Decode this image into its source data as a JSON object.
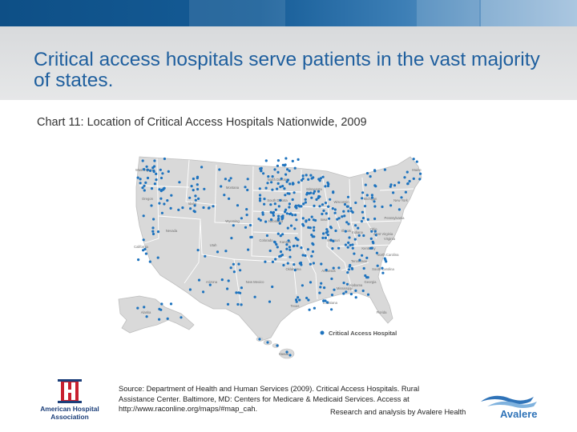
{
  "slide": {
    "title": "Critical access hospitals serve patients in the vast majority of states.",
    "chart_caption": "Chart 11: Location of Critical Access Hospitals Nationwide, 2009"
  },
  "map": {
    "legend_label": "Critical Access Hospital",
    "marker_color": "#1e73be",
    "land_color": "#d9d9d9",
    "border_color": "#ffffff",
    "state_labels": [
      "Washington",
      "Oregon",
      "California",
      "Nevada",
      "Idaho",
      "Montana",
      "Wyoming",
      "Utah",
      "Arizona",
      "Colorado",
      "New Mexico",
      "North Dakota",
      "South Dakota",
      "Nebraska",
      "Kansas",
      "Oklahoma",
      "Texas",
      "Minnesota",
      "Iowa",
      "Missouri",
      "Arkansas",
      "Louisiana",
      "Wisconsin",
      "Illinois",
      "Michigan",
      "Indiana",
      "Ohio",
      "Kentucky",
      "Tennessee",
      "Mississippi",
      "Alabama",
      "Georgia",
      "Florida",
      "South Carolina",
      "North Carolina",
      "Virginia",
      "West Virginia",
      "Pennsylvania",
      "New York",
      "Maine",
      "Alaska",
      "Hawaii"
    ]
  },
  "source": {
    "line1": "Source: Department of Health and Human Services (2009).  Critical Access Hospitals.  Rural",
    "line2": "Assistance Center.  Baltimore, MD:  Centers for Medicare & Medicaid Services.  Access at",
    "line3": "http://www.raconline.org/maps/#map_cah.",
    "analysis": "Research and analysis by Avalere Health"
  },
  "logos": {
    "aha_line1": "American Hospital",
    "aha_line2": "Association",
    "avalere": "Avalere"
  },
  "colors": {
    "title": "#1f5f9e",
    "header_band": "#155c97",
    "title_band": "#e0e1e2"
  }
}
